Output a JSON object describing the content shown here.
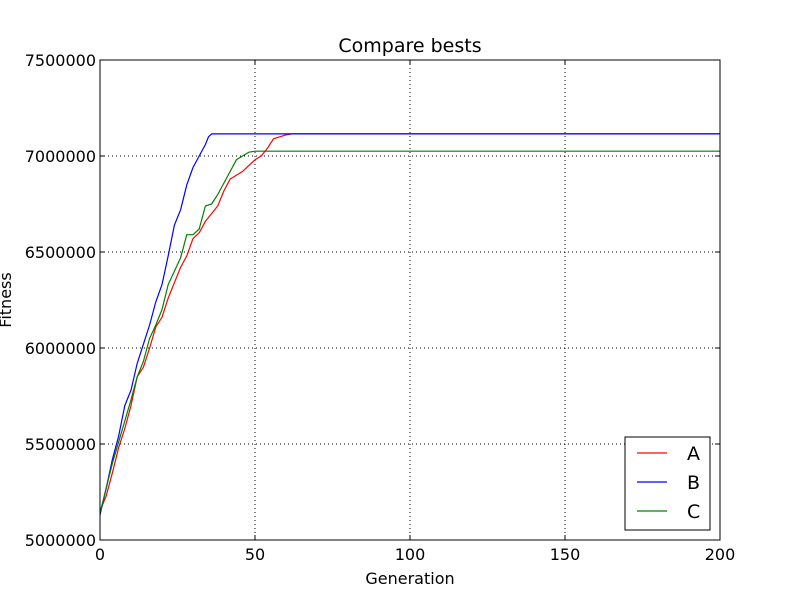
{
  "chart_data": {
    "type": "line",
    "title": "Compare bests",
    "xlabel": "Generation",
    "ylabel": "Fitness",
    "xlim": [
      0,
      200
    ],
    "ylim": [
      5000000,
      7500000
    ],
    "xticks": [
      0,
      50,
      100,
      150,
      200
    ],
    "yticks": [
      5000000,
      5500000,
      6000000,
      6500000,
      7000000,
      7500000
    ],
    "xtick_labels": [
      "0",
      "50",
      "100",
      "150",
      "200"
    ],
    "ytick_labels": [
      "5000000",
      "5500000",
      "6000000",
      "6500000",
      "7000000",
      "7500000"
    ],
    "grid": true,
    "legend_position": "lower-right",
    "series": [
      {
        "name": "A",
        "color": "#ff0000",
        "points": [
          [
            0,
            5150000
          ],
          [
            2,
            5230000
          ],
          [
            4,
            5350000
          ],
          [
            6,
            5480000
          ],
          [
            8,
            5580000
          ],
          [
            10,
            5700000
          ],
          [
            12,
            5850000
          ],
          [
            14,
            5900000
          ],
          [
            16,
            6000000
          ],
          [
            18,
            6110000
          ],
          [
            20,
            6160000
          ],
          [
            22,
            6260000
          ],
          [
            24,
            6340000
          ],
          [
            26,
            6420000
          ],
          [
            28,
            6480000
          ],
          [
            30,
            6570000
          ],
          [
            32,
            6600000
          ],
          [
            34,
            6660000
          ],
          [
            36,
            6700000
          ],
          [
            38,
            6740000
          ],
          [
            40,
            6820000
          ],
          [
            42,
            6880000
          ],
          [
            44,
            6900000
          ],
          [
            46,
            6920000
          ],
          [
            48,
            6950000
          ],
          [
            50,
            6980000
          ],
          [
            52,
            7000000
          ],
          [
            54,
            7040000
          ],
          [
            56,
            7090000
          ],
          [
            58,
            7100000
          ],
          [
            60,
            7110000
          ],
          [
            62,
            7115000
          ],
          [
            200,
            7115000
          ]
        ]
      },
      {
        "name": "B",
        "color": "#0000ff",
        "points": [
          [
            0,
            5130000
          ],
          [
            2,
            5270000
          ],
          [
            4,
            5420000
          ],
          [
            6,
            5540000
          ],
          [
            8,
            5700000
          ],
          [
            10,
            5780000
          ],
          [
            12,
            5920000
          ],
          [
            14,
            6020000
          ],
          [
            16,
            6120000
          ],
          [
            18,
            6240000
          ],
          [
            20,
            6330000
          ],
          [
            22,
            6480000
          ],
          [
            24,
            6640000
          ],
          [
            26,
            6720000
          ],
          [
            28,
            6850000
          ],
          [
            30,
            6940000
          ],
          [
            32,
            7000000
          ],
          [
            34,
            7060000
          ],
          [
            35,
            7100000
          ],
          [
            36,
            7115000
          ],
          [
            200,
            7115000
          ]
        ]
      },
      {
        "name": "C",
        "color": "#008000",
        "points": [
          [
            0,
            5140000
          ],
          [
            2,
            5270000
          ],
          [
            4,
            5400000
          ],
          [
            6,
            5510000
          ],
          [
            8,
            5620000
          ],
          [
            10,
            5730000
          ],
          [
            12,
            5850000
          ],
          [
            14,
            5930000
          ],
          [
            16,
            6050000
          ],
          [
            18,
            6120000
          ],
          [
            20,
            6200000
          ],
          [
            22,
            6330000
          ],
          [
            24,
            6400000
          ],
          [
            26,
            6470000
          ],
          [
            28,
            6590000
          ],
          [
            30,
            6590000
          ],
          [
            32,
            6620000
          ],
          [
            34,
            6740000
          ],
          [
            36,
            6750000
          ],
          [
            38,
            6800000
          ],
          [
            40,
            6860000
          ],
          [
            42,
            6920000
          ],
          [
            44,
            6980000
          ],
          [
            46,
            7000000
          ],
          [
            48,
            7020000
          ],
          [
            50,
            7025000
          ],
          [
            200,
            7025000
          ]
        ]
      }
    ]
  }
}
